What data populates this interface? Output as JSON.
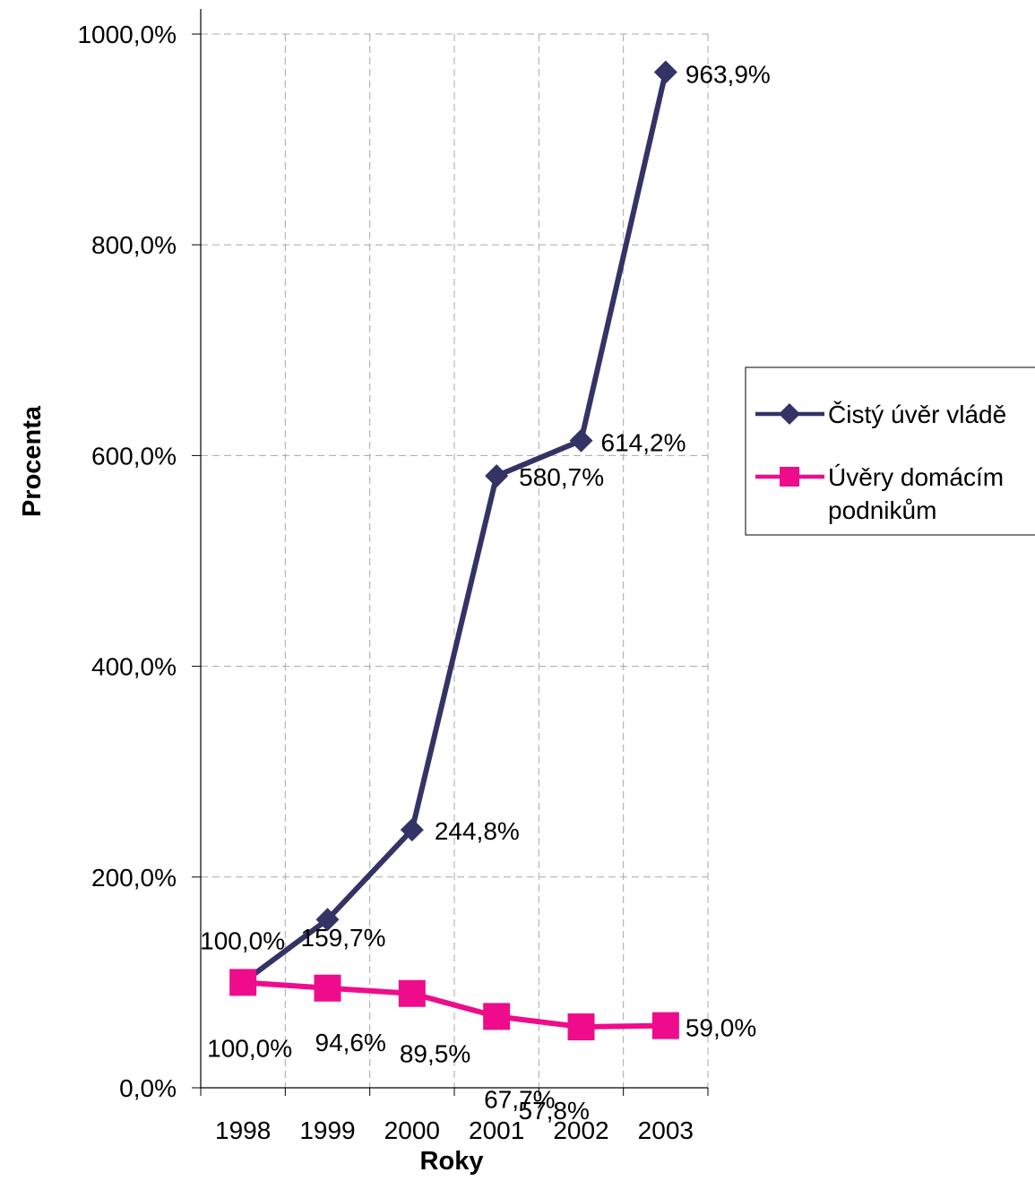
{
  "chart_data": {
    "type": "line",
    "xlabel": "Roky",
    "ylabel": "Procenta",
    "categories": [
      "1998",
      "1999",
      "2000",
      "2001",
      "2002",
      "2003"
    ],
    "ylim": [
      0,
      1000
    ],
    "y_ticks": [
      "0,0%",
      "200,0%",
      "400,0%",
      "600,0%",
      "800,0%",
      "1000,0%"
    ],
    "grid": "dashed, both axes",
    "legend_position": "right",
    "series": [
      {
        "name": "Čistý úvěr vládě",
        "marker": "diamond",
        "color": "#333366",
        "values": [
          100.0,
          159.7,
          244.8,
          580.7,
          614.2,
          963.9
        ],
        "labels": [
          "100,0%",
          "159,7%",
          "244,8%",
          "580,7%",
          "614,2%",
          "963,9%"
        ]
      },
      {
        "name": "Úvěry domácím podnikům",
        "marker": "square",
        "color": "#EE0C8C",
        "values": [
          100.0,
          94.6,
          89.5,
          67.7,
          57.8,
          59.0
        ],
        "labels": [
          "100,0%",
          "94,6%",
          "89,5%",
          "67,7%",
          "57,8%",
          "59,0%"
        ]
      }
    ]
  },
  "legend": {
    "series1_label": "Čistý úvěr vládě",
    "series2_line1": "Úvěry domácím",
    "series2_line2": "podnikům"
  }
}
